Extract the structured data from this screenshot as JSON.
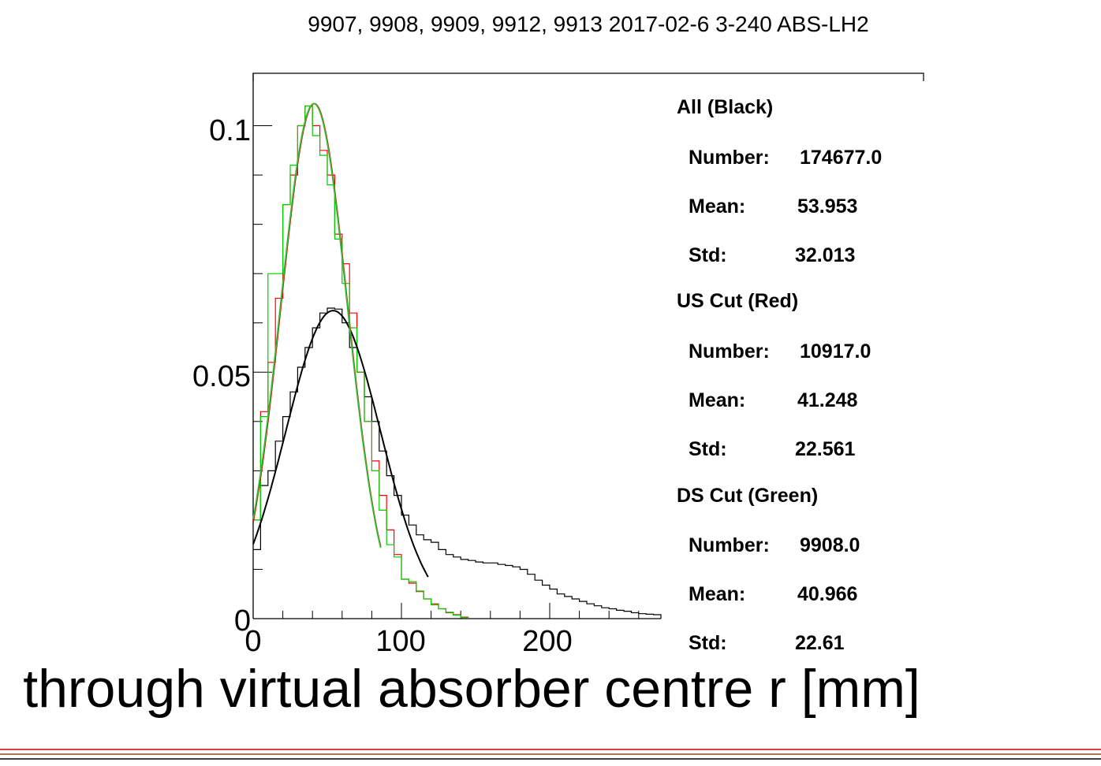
{
  "chart_data": {
    "type": "line",
    "title": "9907, 9908, 9909, 9912, 9913 2017-02-6 3-240 ABS-LH2",
    "xlabel": "through virtual absorber centre r [mm]",
    "ylabel": "",
    "xlim": [
      0,
      275
    ],
    "ylim": [
      0,
      0.11
    ],
    "x_ticks": [
      "0",
      "100",
      "200"
    ],
    "y_ticks": [
      "0",
      "0.05",
      "0.1"
    ],
    "grid": false,
    "colors": {
      "all": "#000000",
      "us": "#ff0000",
      "ds": "#00cc00"
    },
    "series": [
      {
        "name": "All (Black)",
        "bin_edges": [
          0,
          5,
          10,
          15,
          20,
          25,
          30,
          35,
          40,
          45,
          50,
          55,
          60,
          65,
          70,
          75,
          80,
          85,
          90,
          95,
          100,
          105,
          110,
          115,
          120,
          125,
          130,
          135,
          140,
          145,
          150,
          155,
          160,
          165,
          170,
          175,
          180,
          185,
          190,
          195,
          200,
          205,
          210,
          215,
          220,
          225,
          230,
          235,
          240,
          245,
          250,
          255,
          260,
          265,
          270,
          275
        ],
        "values": [
          0.014,
          0.027,
          0.03,
          0.036,
          0.041,
          0.046,
          0.051,
          0.055,
          0.059,
          0.062,
          0.063,
          0.0628,
          0.06,
          0.055,
          0.05,
          0.045,
          0.04,
          0.034,
          0.029,
          0.025,
          0.021,
          0.019,
          0.017,
          0.016,
          0.0155,
          0.014,
          0.013,
          0.0125,
          0.012,
          0.0118,
          0.0115,
          0.0113,
          0.0113,
          0.011,
          0.0108,
          0.0105,
          0.01,
          0.009,
          0.0078,
          0.0068,
          0.006,
          0.005,
          0.0045,
          0.004,
          0.0035,
          0.003,
          0.0026,
          0.0022,
          0.002,
          0.0017,
          0.0015,
          0.0012,
          0.001,
          0.0009,
          0.0008
        ]
      },
      {
        "name": "US Cut (Red)",
        "bin_edges": [
          0,
          5,
          10,
          15,
          20,
          25,
          30,
          35,
          40,
          45,
          50,
          55,
          60,
          65,
          70,
          75,
          80,
          85,
          90,
          95,
          100,
          105,
          110,
          115,
          120,
          125,
          130,
          135,
          140,
          145
        ],
        "values": [
          0.02,
          0.042,
          0.052,
          0.065,
          0.084,
          0.09,
          0.1,
          0.104,
          0.1,
          0.095,
          0.09,
          0.078,
          0.072,
          0.062,
          0.05,
          0.04,
          0.032,
          0.025,
          0.018,
          0.013,
          0.008,
          0.0072,
          0.0055,
          0.004,
          0.003,
          0.002,
          0.0012,
          0.0008,
          0.0003
        ]
      },
      {
        "name": "DS Cut (Green)",
        "bin_edges": [
          0,
          5,
          10,
          15,
          20,
          25,
          30,
          35,
          40,
          45,
          50,
          55,
          60,
          65,
          70,
          75,
          80,
          85,
          90,
          95,
          100,
          105,
          110,
          115,
          120,
          125,
          130,
          135,
          140,
          145
        ],
        "values": [
          0.02,
          0.041,
          0.07,
          0.07,
          0.084,
          0.092,
          0.1,
          0.104,
          0.098,
          0.094,
          0.088,
          0.077,
          0.068,
          0.059,
          0.05,
          0.04,
          0.03,
          0.022,
          0.015,
          0.0125,
          0.008,
          0.0075,
          0.0056,
          0.004,
          0.0028,
          0.002,
          0.0013,
          0.0007,
          0.0002
        ]
      }
    ],
    "fits": [
      {
        "series": "All (Black)",
        "type": "gaussian",
        "amplitude": 0.0625,
        "mean": 53.953,
        "sigma": 32.013,
        "range": [
          0,
          118
        ]
      },
      {
        "series": "US Cut (Red)",
        "type": "gaussian",
        "amplitude": 0.1045,
        "mean": 41.248,
        "sigma": 22.561,
        "range": [
          0,
          86
        ]
      },
      {
        "series": "DS Cut (Green)",
        "type": "gaussian",
        "amplitude": 0.1045,
        "mean": 40.966,
        "sigma": 22.61,
        "range": [
          0,
          86
        ]
      }
    ],
    "legend": "right",
    "stats": [
      {
        "heading": "All (Black)",
        "rows": [
          {
            "label": "Number:",
            "value": "174677.0"
          },
          {
            "label": "Mean:",
            "value": "53.953"
          },
          {
            "label": "Std:",
            "value": "32.013"
          }
        ]
      },
      {
        "heading": "US Cut (Red)",
        "rows": [
          {
            "label": "Number:",
            "value": "10917.0"
          },
          {
            "label": "Mean:",
            "value": "41.248"
          },
          {
            "label": "Std:",
            "value": "22.561"
          }
        ]
      },
      {
        "heading": "DS Cut (Green)",
        "rows": [
          {
            "label": "Number:",
            "value": "9908.0"
          },
          {
            "label": "Mean:",
            "value": "40.966"
          },
          {
            "label": "Std:",
            "value": "22.61"
          }
        ]
      }
    ]
  }
}
